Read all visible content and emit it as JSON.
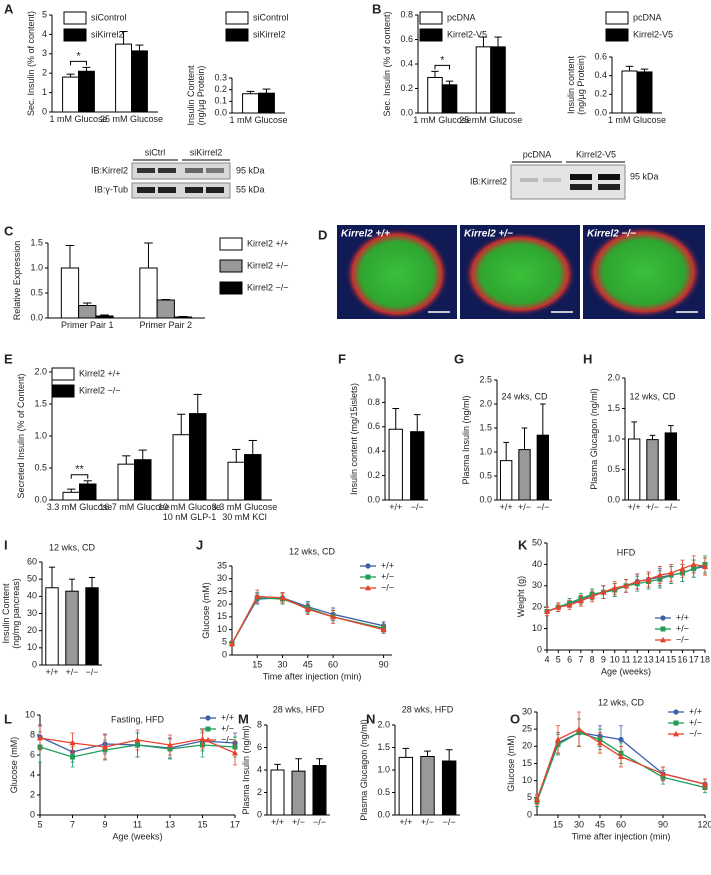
{
  "chart_data": [
    {
      "type": "bar",
      "panel": "A",
      "ylabel": [
        "Sec. Insulin (% of content)"
      ],
      "categories": [
        "1 mM Glucose",
        "25 mM Glucose"
      ],
      "series": [
        {
          "name": "siControl",
          "color": "#ffffff",
          "values": [
            1.8,
            3.5
          ],
          "errors": [
            0.15,
            0.65
          ]
        },
        {
          "name": "siKirrel2",
          "color": "#000000",
          "values": [
            2.1,
            3.15
          ],
          "errors": [
            0.2,
            0.3
          ]
        }
      ],
      "ylim": [
        0,
        5
      ],
      "yticks": [
        0,
        1,
        2,
        3,
        4,
        5
      ],
      "significance": "*"
    },
    {
      "type": "bar",
      "ylabel": [
        "Insulin Content",
        "(ng/µg Protein)"
      ],
      "categories": [
        "1 mM Glucose"
      ],
      "series": [
        {
          "name": "siControl",
          "color": "#ffffff",
          "values": [
            0.165
          ],
          "errors": [
            0.02
          ]
        },
        {
          "name": "siKirrel2",
          "color": "#000000",
          "values": [
            0.17
          ],
          "errors": [
            0.035
          ]
        }
      ],
      "ylim": [
        0,
        0.3
      ],
      "yticks": [
        {
          "value": 0,
          "label": "0.0"
        },
        0.1,
        0.2,
        0.3
      ]
    },
    {
      "type": "bar",
      "panel": "B",
      "ylabel": [
        "Sec. Insulin (% of content)"
      ],
      "categories": [
        "1 mM Glucose",
        "25 mM Glucose"
      ],
      "series": [
        {
          "name": "pcDNA",
          "color": "#ffffff",
          "values": [
            0.29,
            0.54
          ],
          "errors": [
            0.05,
            0.08
          ]
        },
        {
          "name": "Kirrel2-V5",
          "color": "#000000",
          "values": [
            0.23,
            0.54
          ],
          "errors": [
            0.03,
            0.08
          ]
        }
      ],
      "ylim": [
        0,
        0.8
      ],
      "yticks": [
        {
          "value": 0,
          "label": "0.0"
        },
        0.2,
        0.4,
        0.6,
        0.8
      ],
      "significance": "*"
    },
    {
      "type": "bar",
      "ylabel": [
        "Insulin content",
        "(ng/µg Protein)"
      ],
      "categories": [
        "1 mM Glucose"
      ],
      "series": [
        {
          "name": "pcDNA",
          "color": "#ffffff",
          "values": [
            0.45
          ],
          "errors": [
            0.05
          ]
        },
        {
          "name": "Kirrel2-V5",
          "color": "#000000",
          "values": [
            0.44
          ],
          "errors": [
            0.03
          ]
        }
      ],
      "ylim": [
        0,
        0.6
      ],
      "yticks": [
        {
          "value": 0,
          "label": "0.0"
        },
        0.2,
        0.4,
        0.6
      ]
    },
    {
      "type": "bar",
      "panel": "C",
      "ylabel": [
        "Relative Expression"
      ],
      "categories": [
        "Primer Pair 1",
        "Primer Pair 2"
      ],
      "series": [
        {
          "name": "Kirrel2 +/+",
          "color": "#ffffff",
          "values": [
            1.0,
            1.0
          ],
          "errors": [
            0.45,
            0.5
          ]
        },
        {
          "name": "Kirrel2 +/−",
          "color": "#999999",
          "values": [
            0.25,
            0.36
          ],
          "errors": [
            0.05,
            0.01
          ]
        },
        {
          "name": "Kirrel2 −/−",
          "color": "#000000",
          "values": [
            0.04,
            0.02
          ],
          "errors": [
            0.02,
            0.01
          ]
        }
      ],
      "ylim": [
        0,
        1.5
      ],
      "yticks": [
        {
          "value": 0,
          "label": "0.0"
        },
        0.5,
        {
          "value": 1,
          "label": "1.0"
        },
        1.5
      ]
    },
    {
      "type": "bar",
      "panel": "E",
      "ylabel": [
        "Secreted Insulin (% of Content)"
      ],
      "categories": [
        "3.3 mM Glucose",
        "16.7 mM Glucose",
        "10 mM Glucose\n10 nM GLP-1",
        "3.3 mM Glucose\n30 mM KCl"
      ],
      "series": [
        {
          "name": "Kirrel2 +/+",
          "color": "#ffffff",
          "values": [
            0.12,
            0.56,
            1.02,
            0.59
          ],
          "errors": [
            0.05,
            0.13,
            0.32,
            0.2
          ]
        },
        {
          "name": "Kirrel2 −/−",
          "color": "#000000",
          "values": [
            0.25,
            0.63,
            1.35,
            0.71
          ],
          "errors": [
            0.05,
            0.15,
            0.3,
            0.22
          ]
        }
      ],
      "ylim": [
        0,
        2
      ],
      "yticks": [
        {
          "value": 0,
          "label": "0.0"
        },
        0.5,
        {
          "value": 1,
          "label": "1.0"
        },
        1.5,
        {
          "value": 2,
          "label": "2.0"
        }
      ],
      "significance": "**"
    },
    {
      "type": "bar",
      "panel": "F",
      "ylabel": [
        "Insulin content (mg/15islets)"
      ],
      "categories": [
        "+/+",
        "−/−"
      ],
      "values": [
        0.58,
        0.56
      ],
      "errors": [
        0.17,
        0.14
      ],
      "colors": [
        "#ffffff",
        "#000000"
      ],
      "ylim": [
        0,
        1
      ],
      "yticks": [
        {
          "value": 0,
          "label": "0.0"
        },
        0.2,
        0.4,
        0.6,
        0.8,
        {
          "value": 1,
          "label": "1.0"
        }
      ]
    },
    {
      "type": "bar",
      "panel": "G",
      "title": "24 wks, CD",
      "ylabel": [
        "Plasma Insulin (ng/ml)"
      ],
      "categories": [
        "+/+",
        "+/−",
        "−/−"
      ],
      "values": [
        0.82,
        1.05,
        1.35
      ],
      "errors": [
        0.38,
        0.45,
        0.65
      ],
      "colors": [
        "#ffffff",
        "#999999",
        "#000000"
      ],
      "ylim": [
        0,
        2.5
      ],
      "yticks": [
        {
          "value": 0,
          "label": "0.0"
        },
        0.5,
        {
          "value": 1,
          "label": "1.0"
        },
        1.5,
        {
          "value": 2,
          "label": "2.0"
        },
        2.5
      ]
    },
    {
      "type": "bar",
      "panel": "H",
      "title": "12 wks, CD",
      "ylabel": [
        "Plasma Glucagon (ng/ml)"
      ],
      "categories": [
        "+/+",
        "+/−",
        "−/−"
      ],
      "values": [
        1.0,
        0.99,
        1.1
      ],
      "errors": [
        0.28,
        0.07,
        0.12
      ],
      "colors": [
        "#ffffff",
        "#999999",
        "#000000"
      ],
      "ylim": [
        0,
        2
      ],
      "yticks": [
        {
          "value": 0,
          "label": "0.0"
        },
        0.5,
        {
          "value": 1,
          "label": "1.0"
        },
        1.5,
        {
          "value": 2,
          "label": "2.0"
        }
      ]
    },
    {
      "type": "bar",
      "panel": "I",
      "title": "12 wks, CD",
      "ylabel": [
        "Insulin Content",
        "(ng/mg pancreas)"
      ],
      "categories": [
        "+/+",
        "+/−",
        "−/−"
      ],
      "values": [
        45,
        43,
        45
      ],
      "errors": [
        12,
        7,
        6
      ],
      "colors": [
        "#ffffff",
        "#999999",
        "#000000"
      ],
      "ylim": [
        0,
        60
      ],
      "yticks": [
        0,
        10,
        20,
        30,
        40,
        50,
        60
      ]
    },
    {
      "type": "line",
      "panel": "J",
      "title": "12 wks, CD",
      "ylabel": [
        "Glucose (mM)"
      ],
      "xlabel": "Time after injection (min)",
      "x": [
        0,
        15,
        30,
        45,
        60,
        90
      ],
      "series": [
        {
          "name": "+/+",
          "color": "#3c5fa8",
          "marker": "circle",
          "values": [
            4.5,
            22,
            22.5,
            19,
            16,
            11.5
          ],
          "errors": [
            1,
            2,
            2,
            2,
            2.5,
            1.5
          ]
        },
        {
          "name": "+/−",
          "color": "#1f9e5a",
          "marker": "square",
          "values": [
            4.5,
            22.5,
            22,
            18.5,
            15,
            10.5
          ],
          "errors": [
            1,
            2,
            2,
            2,
            2.5,
            1.5
          ]
        },
        {
          "name": "−/−",
          "color": "#e8412c",
          "marker": "triangle",
          "values": [
            4.5,
            23,
            22.5,
            18,
            15,
            10
          ],
          "errors": [
            1,
            2.5,
            2,
            2,
            2.5,
            1.5
          ]
        }
      ],
      "xlim": [
        0,
        95
      ],
      "xticks": [
        15,
        30,
        45,
        60,
        90
      ],
      "ylim": [
        0,
        35
      ],
      "yticks": [
        0,
        5,
        10,
        15,
        20,
        25,
        30,
        35
      ]
    },
    {
      "type": "line",
      "panel": "K",
      "title": "HFD",
      "ylabel": [
        "Weight (g)"
      ],
      "xlabel": "Age (weeks)",
      "x": [
        4,
        5,
        6,
        7,
        8,
        9,
        10,
        11,
        12,
        13,
        14,
        15,
        16,
        17,
        18
      ],
      "series": [
        {
          "name": "+/+",
          "color": "#3c5fa8",
          "marker": "circle",
          "values": [
            18,
            20,
            22,
            23,
            26,
            27,
            28,
            30,
            32,
            33,
            34,
            35,
            36,
            38,
            39
          ],
          "errors": [
            2,
            2,
            2,
            2.5,
            2.5,
            3,
            3,
            3,
            3.5,
            3.5,
            4,
            4,
            4,
            4,
            4
          ]
        },
        {
          "name": "+/−",
          "color": "#1f9e5a",
          "marker": "square",
          "values": [
            18,
            20,
            22,
            24,
            26,
            27,
            28,
            30,
            31,
            32,
            33,
            35,
            36,
            38,
            40
          ],
          "errors": [
            2,
            2,
            2,
            2.5,
            2.5,
            3,
            3,
            3,
            3.5,
            3.5,
            4,
            4,
            4,
            4,
            4
          ]
        },
        {
          "name": "−/−",
          "color": "#e8412c",
          "marker": "triangle",
          "values": [
            18,
            20,
            21,
            23,
            25,
            27,
            29,
            30,
            32,
            33,
            35,
            36,
            38,
            40,
            39
          ],
          "errors": [
            2,
            2,
            2,
            2.5,
            2.5,
            3,
            3,
            3,
            3.5,
            3.5,
            4,
            4,
            4,
            4,
            4
          ]
        }
      ],
      "xlim": [
        4,
        18
      ],
      "xticks": [
        4,
        5,
        6,
        7,
        8,
        9,
        10,
        11,
        12,
        13,
        14,
        15,
        16,
        17,
        18
      ],
      "ylim": [
        0,
        50
      ],
      "yticks": [
        0,
        10,
        20,
        30,
        40,
        50
      ]
    },
    {
      "type": "line",
      "panel": "L",
      "title": "Fasting, HFD",
      "ylabel": [
        "Glucose (mM)"
      ],
      "xlabel": "Age (weeks)",
      "x": [
        5,
        7,
        9,
        11,
        13,
        15,
        17
      ],
      "series": [
        {
          "name": "+/+",
          "color": "#3c5fa8",
          "marker": "circle",
          "values": [
            7.8,
            6.3,
            7.1,
            7.0,
            6.7,
            7.4,
            7.2
          ],
          "errors": [
            1.2,
            1.0,
            1.0,
            1.2,
            1.0,
            1.0,
            1.0
          ]
        },
        {
          "name": "+/−",
          "color": "#1f9e5a",
          "marker": "square",
          "values": [
            6.8,
            5.8,
            6.5,
            7.0,
            6.6,
            7.0,
            6.8
          ],
          "errors": [
            1.5,
            1.0,
            1.0,
            1.2,
            1.0,
            1.2,
            1.0
          ]
        },
        {
          "name": "−/−",
          "color": "#e8412c",
          "marker": "triangle",
          "values": [
            7.7,
            7.2,
            6.8,
            7.5,
            7.0,
            7.6,
            6.2
          ],
          "errors": [
            1.2,
            1.0,
            1.2,
            1.0,
            1.0,
            1.0,
            1.2
          ]
        }
      ],
      "xlim": [
        5,
        17
      ],
      "xticks": [
        5,
        7,
        9,
        11,
        13,
        15,
        17
      ],
      "ylim": [
        0,
        10
      ],
      "yticks": [
        0,
        2,
        4,
        6,
        8,
        10
      ]
    },
    {
      "type": "bar",
      "panel": "M",
      "title": "28 wks, HFD",
      "ylabel": [
        "Plasma Insulin (ng/ml)"
      ],
      "categories": [
        "+/+",
        "+/−",
        "−/−"
      ],
      "values": [
        4.0,
        3.9,
        4.4
      ],
      "errors": [
        0.5,
        1.1,
        0.6
      ],
      "colors": [
        "#ffffff",
        "#999999",
        "#000000"
      ],
      "ylim": [
        0,
        8
      ],
      "yticks": [
        0,
        2,
        4,
        6,
        8
      ]
    },
    {
      "type": "bar",
      "panel": "N",
      "title": "28 wks, HFD",
      "ylabel": [
        "Plasma Glucagon (ng/ml)"
      ],
      "categories": [
        "+/+",
        "+/−",
        "−/−"
      ],
      "values": [
        1.28,
        1.3,
        1.2
      ],
      "errors": [
        0.2,
        0.12,
        0.25
      ],
      "colors": [
        "#ffffff",
        "#999999",
        "#000000"
      ],
      "ylim": [
        0,
        2
      ],
      "yticks": [
        {
          "value": 0,
          "label": "0.0"
        },
        0.5,
        {
          "value": 1,
          "label": "1.0"
        },
        1.5,
        {
          "value": 2,
          "label": "2.0"
        }
      ]
    },
    {
      "type": "line",
      "panel": "O",
      "title": "12 wks, CD",
      "ylabel": [
        "Glucose (mM)"
      ],
      "xlabel": "Time after injection (min)",
      "x": [
        0,
        15,
        30,
        45,
        60,
        90,
        120
      ],
      "series": [
        {
          "name": "+/+",
          "color": "#3c5fa8",
          "marker": "circle",
          "values": [
            4,
            21,
            24,
            23,
            22,
            12,
            9
          ],
          "errors": [
            1.5,
            3,
            4,
            3,
            4,
            2,
            1.5
          ]
        },
        {
          "name": "+/−",
          "color": "#1f9e5a",
          "marker": "square",
          "values": [
            4,
            20.5,
            24,
            22,
            18,
            11,
            8
          ],
          "errors": [
            1.5,
            3,
            4,
            3,
            3,
            2,
            1.5
          ]
        },
        {
          "name": "−/−",
          "color": "#e8412c",
          "marker": "triangle",
          "values": [
            4.5,
            22,
            25,
            21,
            17,
            12,
            9
          ],
          "errors": [
            1.5,
            4,
            5,
            3,
            3,
            2,
            1.5
          ]
        }
      ],
      "xlim": [
        0,
        120
      ],
      "xticks": [
        15,
        30,
        45,
        60,
        90,
        120
      ],
      "ylim": [
        0,
        30
      ],
      "yticks": [
        0,
        5,
        10,
        15,
        20,
        25,
        30
      ]
    }
  ],
  "blots": [
    {
      "lanes": [
        "siCtrl",
        "siKirrel2"
      ],
      "rows": [
        "IB:Kirrel2",
        "IB:γ-Tub"
      ],
      "sizes": [
        "95 kDa",
        "55 kDa"
      ]
    },
    {
      "lanes": [
        "pcDNA",
        "Kirrel2-V5"
      ],
      "rows": [
        "IB:Kirrel2"
      ],
      "sizes": [
        "95 kDa"
      ]
    }
  ],
  "images": {
    "panel": "D",
    "labels": [
      "Kirrel2 +/+",
      "Kirrel2 +/−",
      "Kirrel2 −/−"
    ]
  }
}
